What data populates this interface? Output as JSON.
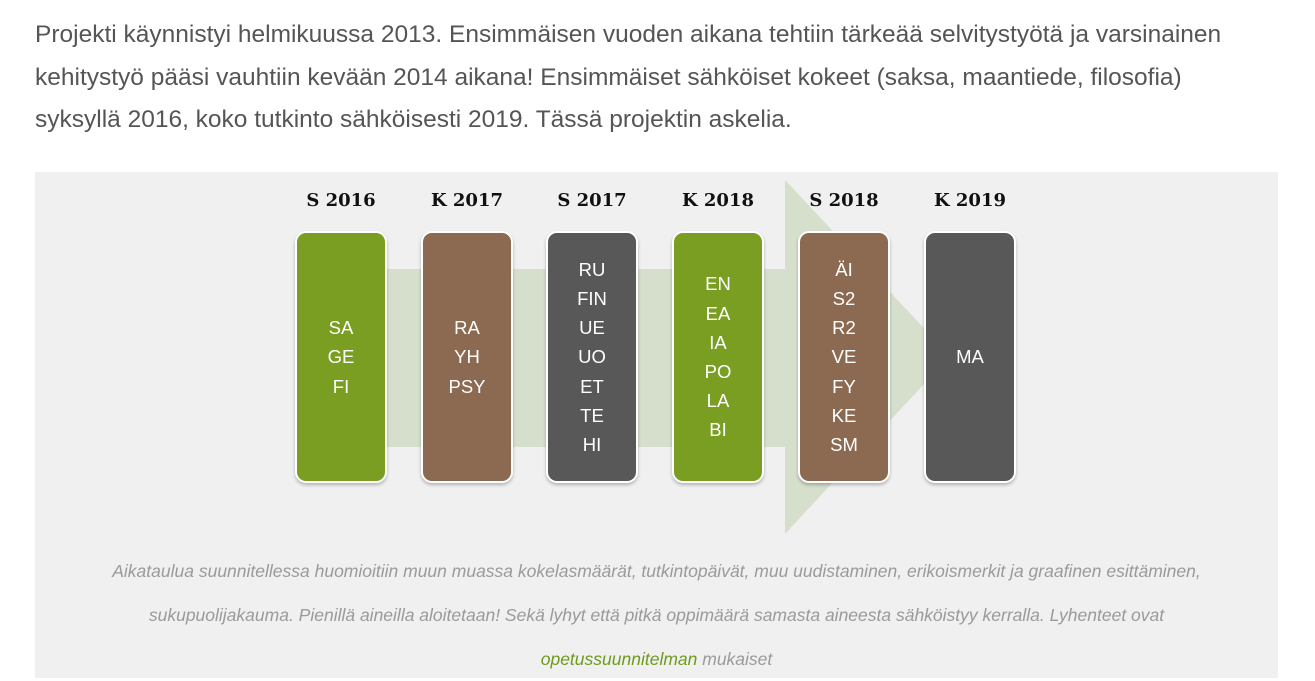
{
  "intro": {
    "text": "Projekti käynnistyi helmikuussa 2013. Ensimmäisen vuoden aikana tehtiin tärkeää selvitystyötä ja varsinainen kehitystyö pääsi vauhtiin kevään 2014 aikana! Ensimmäiset sähköiset kokeet (saksa, maantiede, filosofia) syksyllä 2016, koko tutkinto sähköisesti 2019. Tässä projektin askelia."
  },
  "timeline": {
    "arrow_color": "#d6dfcc",
    "steps": [
      {
        "period": "S 2016",
        "color": "green",
        "subjects": [
          "SA",
          "GE",
          "FI"
        ]
      },
      {
        "period": "K 2017",
        "color": "brown",
        "subjects": [
          "RA",
          "YH",
          "PSY"
        ]
      },
      {
        "period": "S 2017",
        "color": "gray",
        "subjects": [
          "RU",
          "FIN",
          "UE",
          "UO",
          "ET",
          "TE",
          "HI"
        ]
      },
      {
        "period": "K 2018",
        "color": "green",
        "subjects": [
          "EN",
          "EA",
          "IA",
          "PO",
          "LA",
          "BI"
        ]
      },
      {
        "period": "S 2018",
        "color": "brown",
        "subjects": [
          "ÄI",
          "S2",
          "R2",
          "VE",
          "FY",
          "KE",
          "SM"
        ]
      },
      {
        "period": "K 2019",
        "color": "gray",
        "subjects": [
          "MA"
        ]
      }
    ]
  },
  "caption": {
    "line1": "Aikataulua suunnitellessa huomioitiin muun muassa kokelasmäärät, tutkintopäivät, muu uudistaminen, erikoismerkit ja graafinen esittäminen,",
    "line2": "sukupuolijakauma. Pienillä aineilla aloitetaan! Sekä lyhyt että pitkä oppimäärä samasta aineesta sähköistyy kerralla. Lyhenteet ovat",
    "link_text": "opetussuunnitelman",
    "suffix": " mukaiset",
    "link_color": "#6e9a1d"
  }
}
